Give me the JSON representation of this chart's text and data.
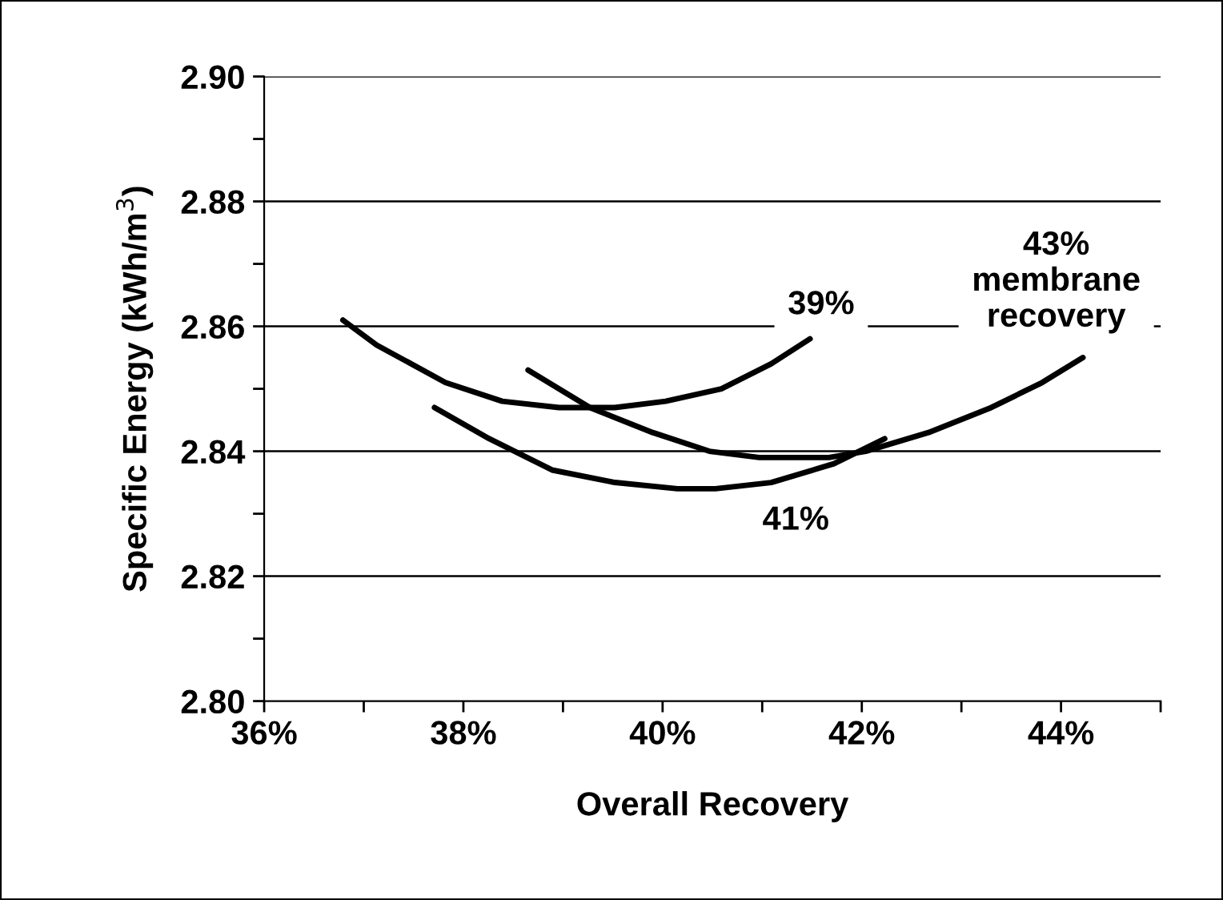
{
  "chart_data": {
    "type": "line",
    "xlabel": "Overall Recovery",
    "ylabel": "Specific Energy (kWh/m$^{3}$)",
    "series": [
      {
        "name": "39%",
        "color": "#000000",
        "x": [
          36.79,
          37.13,
          37.82,
          38.39,
          38.96,
          39.52,
          40.03,
          40.59,
          41.09,
          41.48
        ],
        "values": [
          2.861,
          2.857,
          2.851,
          2.848,
          2.847,
          2.847,
          2.848,
          2.85,
          2.854,
          2.858
        ]
      },
      {
        "name": "41%",
        "color": "#000000",
        "x": [
          37.71,
          38.26,
          38.89,
          39.52,
          40.15,
          40.53,
          41.09,
          41.72,
          42.23
        ],
        "values": [
          2.847,
          2.842,
          2.837,
          2.835,
          2.834,
          2.834,
          2.835,
          2.838,
          2.842
        ]
      },
      {
        "name": "43%\nmembrane\nrecovery",
        "color": "#000000",
        "x": [
          38.65,
          39.27,
          39.9,
          40.47,
          40.97,
          41.67,
          42.04,
          42.67,
          43.3,
          43.81,
          44.22
        ],
        "values": [
          2.853,
          2.847,
          2.843,
          2.84,
          2.839,
          2.839,
          2.84,
          2.843,
          2.847,
          2.851,
          2.855
        ]
      }
    ],
    "xlim": [
      36,
      45
    ],
    "xticks": [
      {
        "value": 36,
        "label": "36%"
      },
      {
        "value": 37,
        "label": null
      },
      {
        "value": 38,
        "label": "38%"
      },
      {
        "value": 39,
        "label": null
      },
      {
        "value": 40,
        "label": "40%"
      },
      {
        "value": 41,
        "label": null
      },
      {
        "value": 42,
        "label": "42%"
      },
      {
        "value": 43,
        "label": null
      },
      {
        "value": 44,
        "label": "44%"
      },
      {
        "value": 45,
        "label": null
      }
    ],
    "ylim": [
      2.8,
      2.9
    ],
    "yticks": [
      {
        "value": 2.8,
        "label": "2.80"
      },
      {
        "value": 2.81,
        "label": null
      },
      {
        "value": 2.82,
        "label": "2.82"
      },
      {
        "value": 2.83,
        "label": null
      },
      {
        "value": 2.84,
        "label": "2.84"
      },
      {
        "value": 2.85,
        "label": null
      },
      {
        "value": 2.86,
        "label": "2.86"
      },
      {
        "value": 2.87,
        "label": null
      },
      {
        "value": 2.88,
        "label": "2.88"
      },
      {
        "value": 2.89,
        "label": null
      },
      {
        "value": 2.9,
        "label": "2.90"
      }
    ],
    "grid": "y",
    "marker": "none",
    "line_style": "solid"
  }
}
